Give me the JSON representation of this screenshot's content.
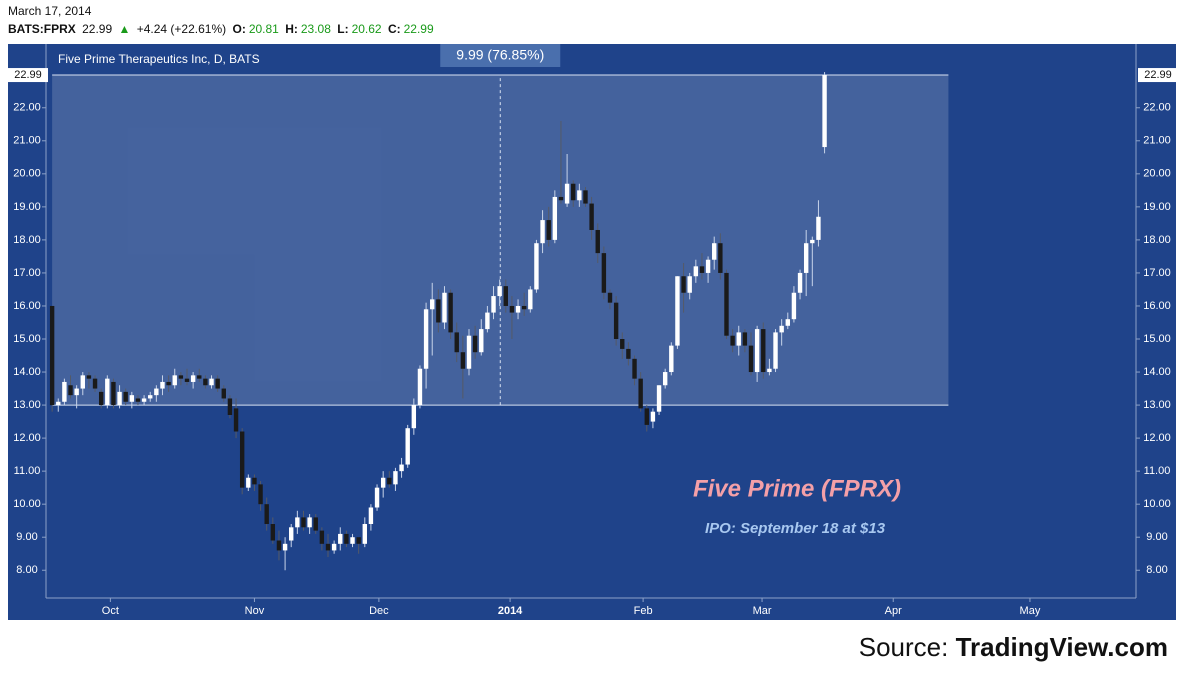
{
  "header": {
    "date": "March 17, 2014",
    "symbol": "BATS:FPRX",
    "last": "22.99",
    "arrow": "▲",
    "change": "+4.24 (+22.61%)",
    "o_label": "O:",
    "open": "20.81",
    "h_label": "H:",
    "high": "23.08",
    "l_label": "L:",
    "low": "20.62",
    "c_label": "C:",
    "close": "22.99"
  },
  "source": {
    "prefix": "Source:",
    "name": "TradingView.com"
  },
  "chart_data": {
    "type": "candlestick",
    "title": "Five Prime Therapeutics Inc, D, BATS",
    "up_color": "#ffffff",
    "down_color": "#1a1a1a",
    "ylim": [
      7.16,
      23.93
    ],
    "yticks": [
      {
        "value": 8,
        "label": "8.00"
      },
      {
        "value": 9,
        "label": "9.00"
      },
      {
        "value": 10,
        "label": "10.00"
      },
      {
        "value": 11,
        "label": "11.00"
      },
      {
        "value": 12,
        "label": "12.00"
      },
      {
        "value": 13,
        "label": "13.00"
      },
      {
        "value": 14,
        "label": "14.00"
      },
      {
        "value": 15,
        "label": "15.00"
      },
      {
        "value": 16,
        "label": "16.00"
      },
      {
        "value": 17,
        "label": "17.00"
      },
      {
        "value": 18,
        "label": "18.00"
      },
      {
        "value": 19,
        "label": "19.00"
      },
      {
        "value": 20,
        "label": "20.00"
      },
      {
        "value": 21,
        "label": "21.00"
      },
      {
        "value": 22,
        "label": "22.00"
      }
    ],
    "xlim": [
      -1.0,
      176.8
    ],
    "xticks": [
      {
        "value": 9.5,
        "label": "Oct"
      },
      {
        "value": 33.0,
        "label": "Nov"
      },
      {
        "value": 53.3,
        "label": "Dec"
      },
      {
        "value": 74.7,
        "label": "2014"
      },
      {
        "value": 96.4,
        "label": "Feb"
      },
      {
        "value": 115.8,
        "label": "Mar"
      },
      {
        "value": 137.2,
        "label": "Apr"
      },
      {
        "value": 159.5,
        "label": "May"
      }
    ],
    "measure": {
      "low": 13.0,
      "high": 22.99,
      "start": 0,
      "end": 146.2,
      "label": "9.99 (76.85%)"
    },
    "annotations": [
      {
        "text": "Five Prime (FPRX)",
        "color": "#f4a0a8"
      },
      {
        "text": "IPO: September 18 at $13",
        "color": "#a8c8f0"
      }
    ],
    "ohlc": [
      [
        16.0,
        16.0,
        12.8,
        13.0
      ],
      [
        13.0,
        13.2,
        12.8,
        13.1
      ],
      [
        13.1,
        13.8,
        13.0,
        13.7
      ],
      [
        13.6,
        13.9,
        13.2,
        13.3
      ],
      [
        13.3,
        13.6,
        12.9,
        13.5
      ],
      [
        13.5,
        14.0,
        13.3,
        13.9
      ],
      [
        13.9,
        14.0,
        13.5,
        13.8
      ],
      [
        13.8,
        13.9,
        13.4,
        13.5
      ],
      [
        13.4,
        13.5,
        12.9,
        13.0
      ],
      [
        13.0,
        13.9,
        12.9,
        13.8
      ],
      [
        13.7,
        13.8,
        12.9,
        13.0
      ],
      [
        13.0,
        13.6,
        12.9,
        13.4
      ],
      [
        13.4,
        13.5,
        13.0,
        13.1
      ],
      [
        13.1,
        13.4,
        12.9,
        13.3
      ],
      [
        13.2,
        13.3,
        13.0,
        13.1
      ],
      [
        13.1,
        13.3,
        13.0,
        13.2
      ],
      [
        13.2,
        13.4,
        13.1,
        13.3
      ],
      [
        13.3,
        13.6,
        13.1,
        13.5
      ],
      [
        13.5,
        13.9,
        13.3,
        13.7
      ],
      [
        13.7,
        13.9,
        13.4,
        13.6
      ],
      [
        13.6,
        14.1,
        13.5,
        13.9
      ],
      [
        13.9,
        14.0,
        13.6,
        13.8
      ],
      [
        13.8,
        14.1,
        13.6,
        13.7
      ],
      [
        13.7,
        14.0,
        13.5,
        13.9
      ],
      [
        13.9,
        14.1,
        13.7,
        13.8
      ],
      [
        13.8,
        13.9,
        13.5,
        13.6
      ],
      [
        13.6,
        13.9,
        13.5,
        13.8
      ],
      [
        13.8,
        13.9,
        13.4,
        13.5
      ],
      [
        13.5,
        13.6,
        13.1,
        13.2
      ],
      [
        13.2,
        13.3,
        12.6,
        12.7
      ],
      [
        12.9,
        13.2,
        12.0,
        12.2
      ],
      [
        12.2,
        12.3,
        10.3,
        10.5
      ],
      [
        10.5,
        10.9,
        10.4,
        10.8
      ],
      [
        10.8,
        10.9,
        10.4,
        10.6
      ],
      [
        10.6,
        10.7,
        9.8,
        10.0
      ],
      [
        10.0,
        10.2,
        9.2,
        9.4
      ],
      [
        9.4,
        9.6,
        8.8,
        8.9
      ],
      [
        8.9,
        9.2,
        8.3,
        8.6
      ],
      [
        8.6,
        9.0,
        8.0,
        8.8
      ],
      [
        8.9,
        9.4,
        8.7,
        9.3
      ],
      [
        9.3,
        9.8,
        9.1,
        9.6
      ],
      [
        9.6,
        9.8,
        9.2,
        9.3
      ],
      [
        9.3,
        9.7,
        9.1,
        9.6
      ],
      [
        9.6,
        9.7,
        9.1,
        9.2
      ],
      [
        9.2,
        9.3,
        8.6,
        8.8
      ],
      [
        8.8,
        9.1,
        8.4,
        8.6
      ],
      [
        8.6,
        8.9,
        8.5,
        8.8
      ],
      [
        8.8,
        9.3,
        8.6,
        9.1
      ],
      [
        9.1,
        9.2,
        8.7,
        8.8
      ],
      [
        8.8,
        9.1,
        8.7,
        9.0
      ],
      [
        9.0,
        9.0,
        8.5,
        8.8
      ],
      [
        8.8,
        9.6,
        8.7,
        9.4
      ],
      [
        9.4,
        10.0,
        9.2,
        9.9
      ],
      [
        9.9,
        10.6,
        9.8,
        10.5
      ],
      [
        10.5,
        11.0,
        10.2,
        10.8
      ],
      [
        10.8,
        11.0,
        10.5,
        10.6
      ],
      [
        10.6,
        11.1,
        10.4,
        11.0
      ],
      [
        11.0,
        11.4,
        10.8,
        11.2
      ],
      [
        11.2,
        12.4,
        11.1,
        12.3
      ],
      [
        12.3,
        13.2,
        12.1,
        13.0
      ],
      [
        13.0,
        14.2,
        12.9,
        14.1
      ],
      [
        14.1,
        16.1,
        13.5,
        15.9
      ],
      [
        15.9,
        16.7,
        14.5,
        16.2
      ],
      [
        16.2,
        16.5,
        15.2,
        15.5
      ],
      [
        15.5,
        16.6,
        15.3,
        16.4
      ],
      [
        16.4,
        16.5,
        15.0,
        15.2
      ],
      [
        15.2,
        15.5,
        14.3,
        14.6
      ],
      [
        14.6,
        15.1,
        13.2,
        14.1
      ],
      [
        14.1,
        15.3,
        13.9,
        15.1
      ],
      [
        15.1,
        15.4,
        14.4,
        14.6
      ],
      [
        14.6,
        15.6,
        14.5,
        15.3
      ],
      [
        15.3,
        16.0,
        15.2,
        15.8
      ],
      [
        15.8,
        16.6,
        15.6,
        16.3
      ],
      [
        16.3,
        16.8,
        16.0,
        16.6
      ],
      [
        16.6,
        16.8,
        15.8,
        16.0
      ],
      [
        16.0,
        16.3,
        15.0,
        15.8
      ],
      [
        15.8,
        16.2,
        15.6,
        16.0
      ],
      [
        16.0,
        16.4,
        15.7,
        15.9
      ],
      [
        15.9,
        16.6,
        15.8,
        16.5
      ],
      [
        16.5,
        18.0,
        16.4,
        17.9
      ],
      [
        17.9,
        18.9,
        17.6,
        18.6
      ],
      [
        18.6,
        19.0,
        17.8,
        18.0
      ],
      [
        18.0,
        19.5,
        17.9,
        19.3
      ],
      [
        19.3,
        21.6,
        19.1,
        19.2
      ],
      [
        19.1,
        20.6,
        19.0,
        19.7
      ],
      [
        19.7,
        19.8,
        19.0,
        19.2
      ],
      [
        19.2,
        19.7,
        19.0,
        19.5
      ],
      [
        19.5,
        19.6,
        19.0,
        19.1
      ],
      [
        19.1,
        19.3,
        18.0,
        18.3
      ],
      [
        18.3,
        18.5,
        17.3,
        17.6
      ],
      [
        17.6,
        17.8,
        16.2,
        16.4
      ],
      [
        16.4,
        16.5,
        15.9,
        16.1
      ],
      [
        16.1,
        16.3,
        14.8,
        15.0
      ],
      [
        15.0,
        15.2,
        14.4,
        14.7
      ],
      [
        14.7,
        14.9,
        14.2,
        14.4
      ],
      [
        14.4,
        14.5,
        13.6,
        13.8
      ],
      [
        13.8,
        14.0,
        12.8,
        12.9
      ],
      [
        12.9,
        13.0,
        12.2,
        12.4
      ],
      [
        12.5,
        12.9,
        12.3,
        12.8
      ],
      [
        12.8,
        13.6,
        12.7,
        13.6
      ],
      [
        13.6,
        14.1,
        13.5,
        14.0
      ],
      [
        14.0,
        14.9,
        13.9,
        14.8
      ],
      [
        14.8,
        16.9,
        14.7,
        16.9
      ],
      [
        16.9,
        17.3,
        15.8,
        16.4
      ],
      [
        16.4,
        17.0,
        16.2,
        16.9
      ],
      [
        16.9,
        17.4,
        16.7,
        17.2
      ],
      [
        17.2,
        17.6,
        16.8,
        17.0
      ],
      [
        17.0,
        17.5,
        16.7,
        17.4
      ],
      [
        17.4,
        18.1,
        17.1,
        17.9
      ],
      [
        17.9,
        18.2,
        16.8,
        17.0
      ],
      [
        17.0,
        17.1,
        15.0,
        15.1
      ],
      [
        15.1,
        15.3,
        14.6,
        14.8
      ],
      [
        14.8,
        15.4,
        14.5,
        15.2
      ],
      [
        15.2,
        15.3,
        14.6,
        14.8
      ],
      [
        14.8,
        15.2,
        13.9,
        14.0
      ],
      [
        14.0,
        15.4,
        13.7,
        15.3
      ],
      [
        15.3,
        15.5,
        13.8,
        14.0
      ],
      [
        14.0,
        14.4,
        13.9,
        14.1
      ],
      [
        14.1,
        15.3,
        14.0,
        15.2
      ],
      [
        15.2,
        15.6,
        14.8,
        15.4
      ],
      [
        15.4,
        15.8,
        15.3,
        15.6
      ],
      [
        15.6,
        16.6,
        15.5,
        16.4
      ],
      [
        16.4,
        17.1,
        16.2,
        17.0
      ],
      [
        17.0,
        18.3,
        16.3,
        17.9
      ],
      [
        17.9,
        18.1,
        16.6,
        18.0
      ],
      [
        18.0,
        19.2,
        17.8,
        18.7
      ],
      [
        20.81,
        23.08,
        20.62,
        22.99
      ]
    ]
  }
}
